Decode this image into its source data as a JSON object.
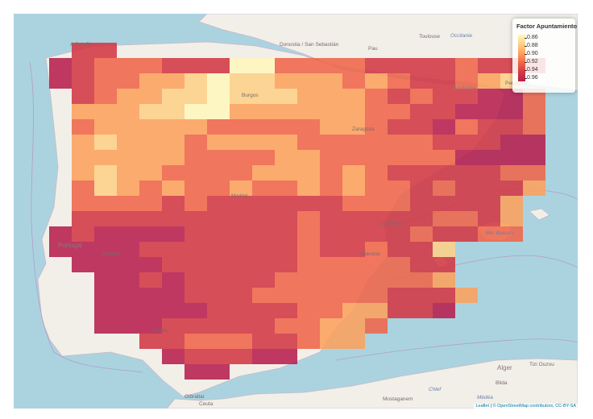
{
  "legend": {
    "title": "Factor Apuntamiento",
    "ticks": [
      "0.86",
      "0.88",
      "0.90",
      "0.92",
      "0.94",
      "0.96"
    ]
  },
  "attribution": {
    "leaflet": "Leaflet",
    "osm": "© OpenStreetMap contributors, CC-BY-SA"
  },
  "colors": {
    "water": "#aad3df",
    "land": "#f2efe9",
    "scale": [
      "#fff8be",
      "#fed189",
      "#fda25e",
      "#f0664a",
      "#d33845",
      "#b71f4f"
    ]
  },
  "place_labels": [
    {
      "text": "Toulouse"
    },
    {
      "text": "Occitanie"
    },
    {
      "text": "Pau"
    },
    {
      "text": "Donostia / San Sebastián"
    },
    {
      "text": "A Coruña"
    },
    {
      "text": "Andorra"
    },
    {
      "text": "Perpignan"
    },
    {
      "text": "Portugal"
    },
    {
      "text": "Illes Balears"
    },
    {
      "text": "Alger"
    },
    {
      "text": "Tizi Ouzou"
    },
    {
      "text": "Blida"
    },
    {
      "text": "Chlef"
    },
    {
      "text": "Médéa"
    },
    {
      "text": "Mostaganem"
    },
    {
      "text": "Ceuta"
    },
    {
      "text": "Gibraltar"
    },
    {
      "text": "Sevilla"
    },
    {
      "text": "Madrid"
    },
    {
      "text": "Valencia"
    },
    {
      "text": "La Plana"
    },
    {
      "text": "Zaragoza"
    },
    {
      "text": "Burgos"
    },
    {
      "text": "Badajoz"
    }
  ],
  "grid": {
    "levels": [
      "...........................................................",
      "...44..........................................................",
      "..5433344400333344443444...........................",
      "..543322101122232344321.....................",
      "...432211011122234344553443334...",
      "...22211002222223344555334444445.",
      "...32222233333223445344344445....",
      "...212223222233333344455555444...",
      "...22222333322333333555555442....",
      "...212233332223234444433542.....",
      "...312323323323233434442342.....",
      "...33334344444433344442.........",
      "...44444444443444443342.........",
      "..545555444443444434433.........",
      "..555544444443443441............",
      "...55554444443333344............",
      "....5545444433333332............",
      "....55554443333334442...........",
      "....5555544443322445............",
      "....5554444433223...............",
      "......4433344322................",
      ".......544455...................",
      "........55......................"
    ]
  }
}
